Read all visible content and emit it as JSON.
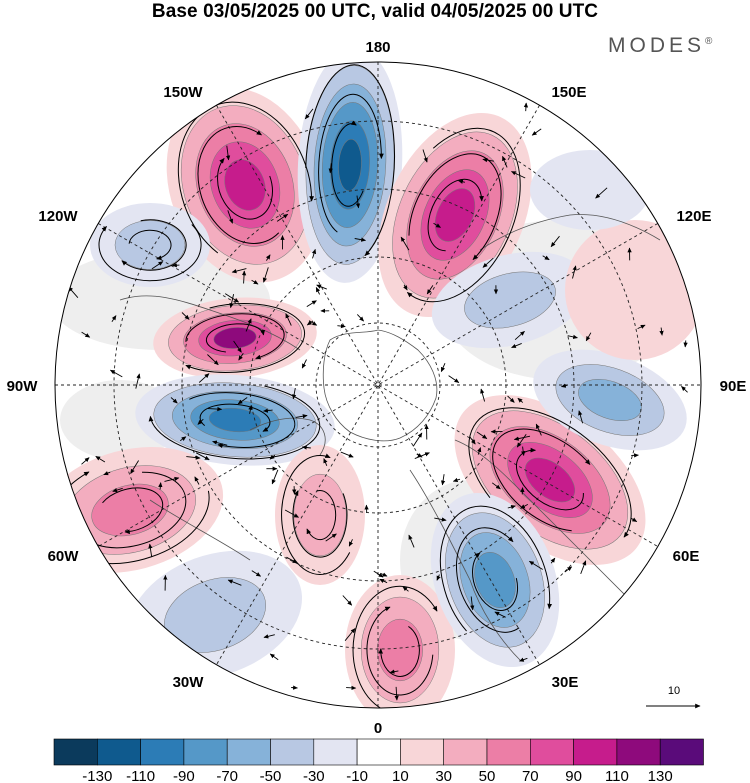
{
  "title": "Base 03/05/2025 00 UTC, valid 04/05/2025 00 UTC",
  "brand": "MODES",
  "brand_mark": "®",
  "longitude_labels": {
    "lon_180": "180",
    "lon_150E": "150E",
    "lon_120E": "120E",
    "lon_90E": "90E",
    "lon_60E": "60E",
    "lon_30E": "30E",
    "lon_0": "0",
    "lon_30W": "30W",
    "lon_60W": "60W",
    "lon_90W": "90W",
    "lon_120W": "120W",
    "lon_150W": "150W"
  },
  "reference_vector": {
    "label": "10"
  },
  "colorbar": {
    "colors": [
      "#0b3a5c",
      "#0f5a8e",
      "#2c7cb6",
      "#5598c8",
      "#86b2d9",
      "#b8c8e3",
      "#e3e5f2",
      "#ffffff",
      "#f8d6d8",
      "#f3adbf",
      "#ec7ea6",
      "#e04d9d",
      "#c61c8c",
      "#8e0a7c",
      "#5a0b7a"
    ],
    "labels": [
      "-130",
      "-110",
      "-90",
      "-70",
      "-50",
      "-30",
      "-10",
      "10",
      "30",
      "50",
      "70",
      "90",
      "110",
      "130"
    ]
  },
  "palette": {
    "neg_light": "#e3e5f2",
    "neg_1": "#b8c8e3",
    "neg_2": "#86b2d9",
    "neg_3": "#5598c8",
    "neg_4": "#2c7cb6",
    "neg_5": "#0f5a8e",
    "neg_6": "#0b3a5c",
    "pos_light": "#f8d6d8",
    "pos_1": "#f3adbf",
    "pos_2": "#ec7ea6",
    "pos_3": "#e04d9d",
    "pos_4": "#c61c8c",
    "pos_5": "#8e0a7c",
    "pos_6": "#5a0b7a",
    "land_grey": "#eeeeee"
  }
}
